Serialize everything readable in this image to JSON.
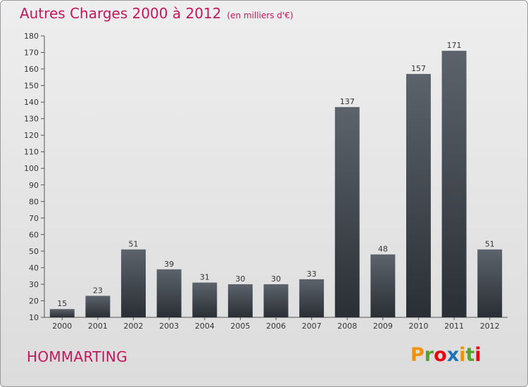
{
  "header": {
    "title": "Autres Charges 2000 à 2012",
    "subtitle": "(en milliers d'€)"
  },
  "footer": {
    "commune": "HOMMARTING",
    "logo": [
      "P",
      "r",
      "o",
      "x",
      "i",
      "t",
      "i"
    ],
    "logo_colors": [
      "#f39200",
      "#5aa02c",
      "#e30613",
      "#1d71b8",
      "#f39200",
      "#5aa02c",
      "#e30613"
    ]
  },
  "chart_data": {
    "type": "bar",
    "title": "Autres Charges 2000 à 2012",
    "subtitle": "(en milliers d'€)",
    "categories": [
      "2000",
      "2001",
      "2002",
      "2003",
      "2004",
      "2005",
      "2006",
      "2007",
      "2008",
      "2009",
      "2010",
      "2011",
      "2012"
    ],
    "values": [
      15,
      23,
      51,
      39,
      31,
      30,
      30,
      33,
      137,
      48,
      157,
      171,
      51
    ],
    "ylim": [
      10,
      180
    ],
    "yticks": [
      10,
      20,
      30,
      40,
      50,
      60,
      70,
      80,
      90,
      100,
      110,
      120,
      130,
      140,
      150,
      160,
      170,
      180
    ],
    "grid": false,
    "data_labels": true,
    "bar_color": "#3a3f45"
  }
}
